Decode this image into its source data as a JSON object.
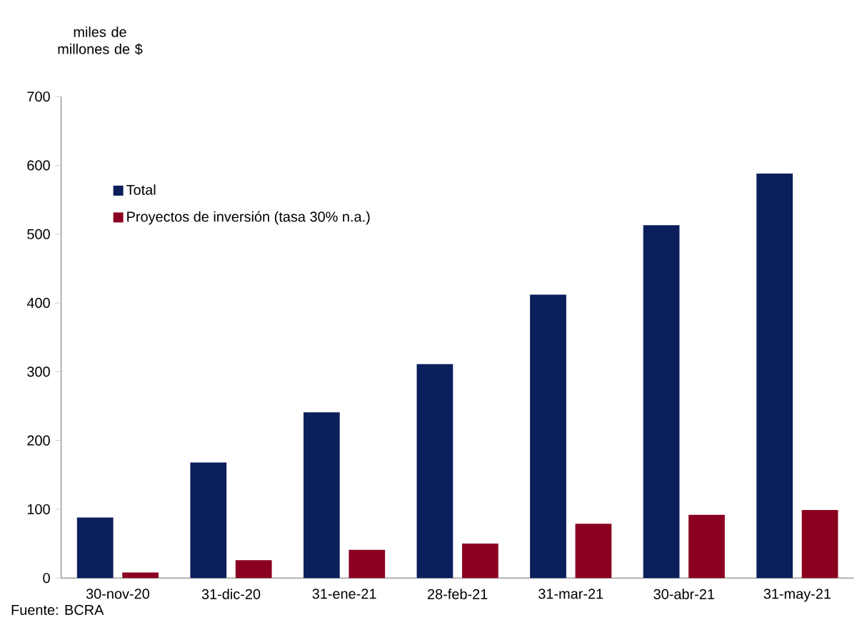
{
  "chart_data": {
    "type": "bar",
    "ylabel": "miles de millones de $",
    "categories": [
      "30-nov-20",
      "31-dic-20",
      "31-ene-21",
      "28-feb-21",
      "31-mar-21",
      "30-abr-21",
      "31-may-21"
    ],
    "series": [
      {
        "name": "Total",
        "color": "#0b1f5c",
        "values": [
          88,
          168,
          241,
          311,
          412,
          513,
          588
        ]
      },
      {
        "name": "Proyectos de inversión (tasa 30% n.a.)",
        "color": "#8b0020",
        "values": [
          8,
          26,
          41,
          50,
          79,
          92,
          99
        ]
      }
    ],
    "ylim": [
      0,
      700
    ],
    "yticks": [
      0,
      100,
      200,
      300,
      400,
      500,
      600,
      700
    ],
    "legend": "top left",
    "annotations": [
      "Fuente: BCRA"
    ]
  }
}
